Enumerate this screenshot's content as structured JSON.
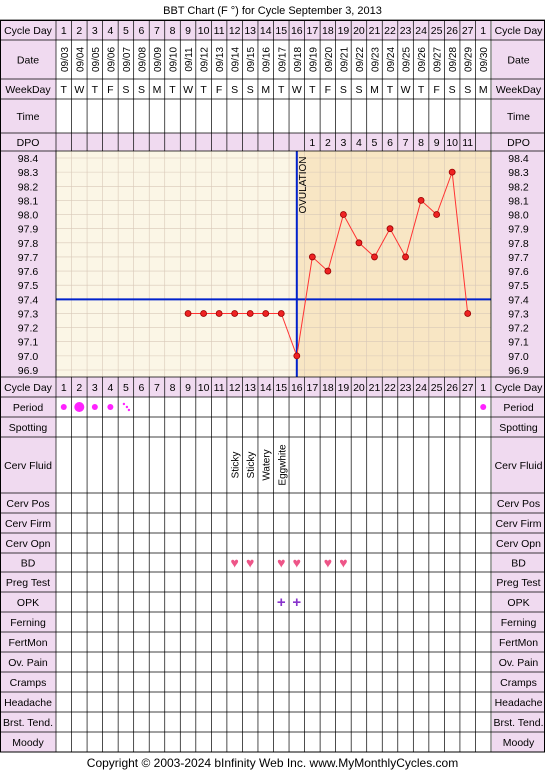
{
  "chart_data": {
    "type": "line",
    "title": "BBT Chart (F °) for Cycle September 3, 2013",
    "copyright": "Copyright © 2003-2024 bInfinity Web Inc.    www.MyMonthlyCycles.com",
    "cycle_days": [
      "1",
      "2",
      "3",
      "4",
      "5",
      "6",
      "7",
      "8",
      "9",
      "10",
      "11",
      "12",
      "13",
      "14",
      "15",
      "16",
      "17",
      "18",
      "19",
      "20",
      "21",
      "22",
      "23",
      "24",
      "25",
      "26",
      "27",
      "1"
    ],
    "dates": [
      "09/03",
      "09/04",
      "09/05",
      "09/06",
      "09/07",
      "09/08",
      "09/09",
      "09/10",
      "09/11",
      "09/12",
      "09/13",
      "09/14",
      "09/15",
      "09/16",
      "09/17",
      "09/18",
      "09/19",
      "09/20",
      "09/21",
      "09/22",
      "09/23",
      "09/24",
      "09/25",
      "09/26",
      "09/27",
      "09/28",
      "09/29",
      "09/30"
    ],
    "weekdays": [
      "T",
      "W",
      "T",
      "F",
      "S",
      "S",
      "M",
      "T",
      "W",
      "T",
      "F",
      "S",
      "S",
      "M",
      "T",
      "W",
      "T",
      "F",
      "S",
      "S",
      "M",
      "T",
      "W",
      "T",
      "F",
      "S",
      "S",
      "M"
    ],
    "dpo": [
      "",
      "",
      "",
      "",
      "",
      "",
      "",
      "",
      "",
      "",
      "",
      "",
      "",
      "",
      "",
      "",
      "1",
      "2",
      "3",
      "4",
      "5",
      "6",
      "7",
      "8",
      "9",
      "10",
      "11",
      ""
    ],
    "temp_ticks": [
      "98.4",
      "98.3",
      "98.2",
      "98.1",
      "98.0",
      "97.9",
      "97.8",
      "97.7",
      "97.6",
      "97.5",
      "97.4",
      "97.3",
      "97.2",
      "97.1",
      "97.0",
      "96.9"
    ],
    "ylim": [
      96.9,
      98.4
    ],
    "temps": [
      null,
      null,
      null,
      null,
      null,
      null,
      null,
      null,
      97.3,
      97.3,
      97.3,
      97.3,
      97.3,
      97.3,
      97.3,
      97.0,
      97.7,
      97.6,
      98.0,
      97.8,
      97.7,
      97.9,
      97.7,
      98.1,
      98.0,
      98.3,
      97.3,
      null
    ],
    "coverline": 97.4,
    "ovulation_day_index": 15,
    "ovulation_label": "OVULATION",
    "colors": {
      "header_bg": "#f0daf0",
      "pre_ovulation_bg": "#fbf6e6",
      "post_ovulation_bg": "#f8e6c4",
      "grid": "#d8c8b8",
      "line": "#ff3333",
      "point": "#ee2222",
      "coverline": "#0022cc",
      "period": "#ff22ff",
      "heart": "#ee5588",
      "opk": "#8833cc"
    },
    "labels": {
      "cycle_day": "Cycle Day",
      "date": "Date",
      "weekday": "WeekDay",
      "time": "Time",
      "dpo": "DPO",
      "period": "Period",
      "spotting": "Spotting",
      "cerv_fluid": "Cerv Fluid",
      "cerv_pos": "Cerv Pos",
      "cerv_firm": "Cerv Firm",
      "cerv_opn": "Cerv Opn",
      "bd": "BD",
      "preg_test": "Preg Test",
      "opk": "OPK",
      "ferning": "Ferning",
      "fertmon": "FertMon",
      "ov_pain": "Ov. Pain",
      "cramps": "Cramps",
      "headache": "Headache",
      "brst_tend": "Brst. Tend.",
      "moody": "Moody"
    },
    "period": [
      2,
      3,
      2,
      2,
      1,
      0,
      0,
      0,
      0,
      0,
      0,
      0,
      0,
      0,
      0,
      0,
      0,
      0,
      0,
      0,
      0,
      0,
      0,
      0,
      0,
      0,
      0,
      2
    ],
    "cerv_fluid": {
      "11": "Sticky",
      "12": "Sticky",
      "13": "Watery",
      "14": "Eggwhite"
    },
    "bd_days": [
      11,
      12,
      14,
      15,
      17,
      18
    ],
    "opk_days": [
      14,
      15
    ],
    "opk_symbol": "+",
    "heart_symbol": "♥"
  }
}
